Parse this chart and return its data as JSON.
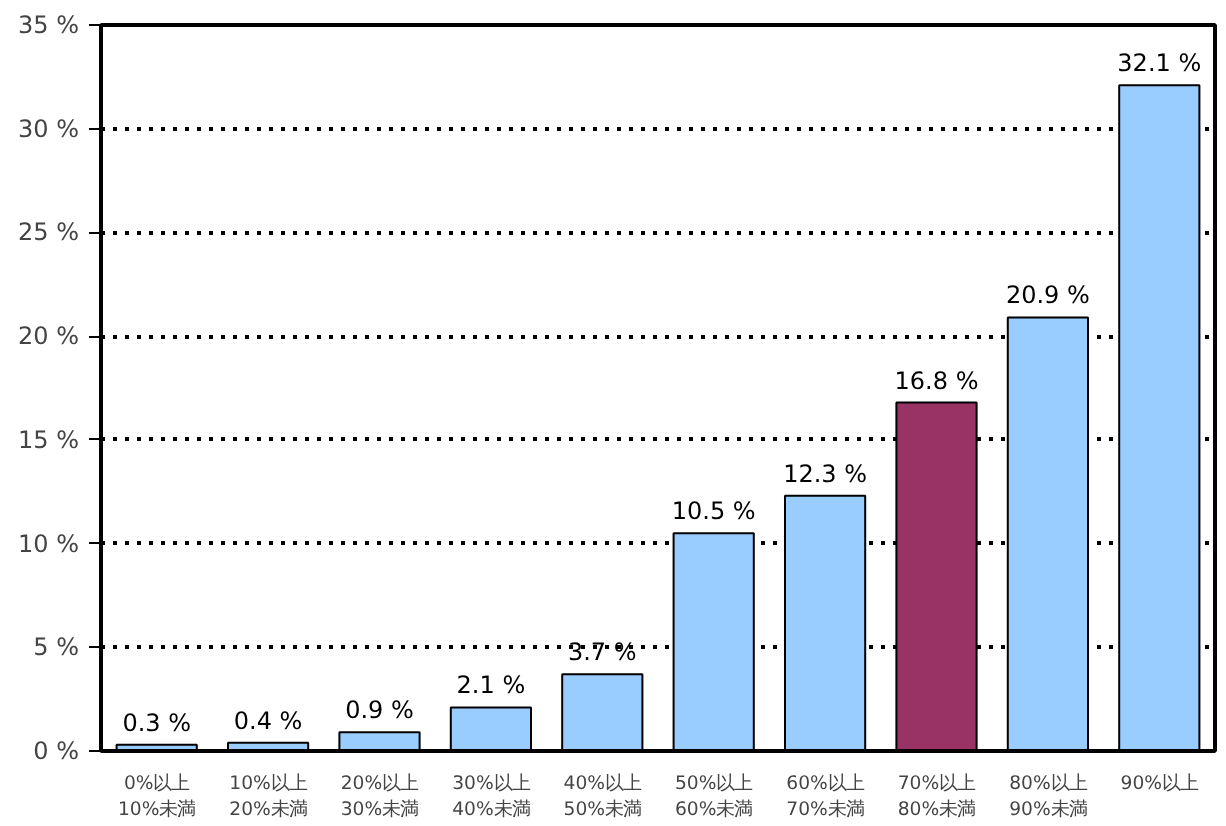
{
  "chart_data": {
    "type": "bar",
    "categories": [
      "0%以上\n10%未満",
      "10%以上\n20%未満",
      "20%以上\n30%未満",
      "30%以上\n40%未満",
      "40%以上\n50%未満",
      "50%以上\n60%未満",
      "60%以上\n70%未満",
      "70%以上\n80%未満",
      "80%以上\n90%未満",
      "90%以上"
    ],
    "values": [
      0.3,
      0.4,
      0.9,
      2.1,
      3.7,
      10.5,
      12.3,
      16.8,
      20.9,
      32.1
    ],
    "value_labels": [
      "0.3 %",
      "0.4 %",
      "0.9 %",
      "2.1 %",
      "3.7 %",
      "10.5 %",
      "12.3 %",
      "16.8 %",
      "20.9 %",
      "32.1 %"
    ],
    "colors": [
      "#99ccff",
      "#99ccff",
      "#99ccff",
      "#99ccff",
      "#99ccff",
      "#99ccff",
      "#99ccff",
      "#993366",
      "#99ccff",
      "#99ccff"
    ],
    "ylim": [
      0,
      35
    ],
    "yticks": [
      {
        "value": 0,
        "label": "0 %"
      },
      {
        "value": 5,
        "label": "5 %"
      },
      {
        "value": 10,
        "label": "10 %"
      },
      {
        "value": 15,
        "label": "15 %"
      },
      {
        "value": 20,
        "label": "20 %"
      },
      {
        "value": 25,
        "label": "25 %"
      },
      {
        "value": 30,
        "label": "30 %"
      },
      {
        "value": 35,
        "label": "35 %"
      }
    ],
    "grid": "y"
  }
}
